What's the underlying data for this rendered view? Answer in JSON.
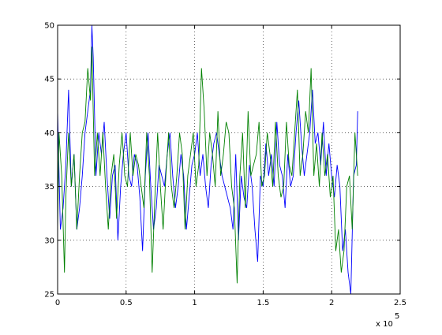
{
  "chart_data": {
    "type": "line",
    "title": "",
    "xlabel": "",
    "ylabel": "",
    "xlim": [
      0,
      2.5
    ],
    "ylim": [
      25,
      50
    ],
    "x_ticks": [
      0,
      0.5,
      1,
      1.5,
      2,
      2.5
    ],
    "x_tick_labels": [
      "0",
      "0.5",
      "1",
      "1.5",
      "2",
      "2.5"
    ],
    "y_ticks": [
      25,
      30,
      35,
      40,
      45,
      50
    ],
    "y_tick_labels": [
      "25",
      "30",
      "35",
      "40",
      "45",
      "50"
    ],
    "x_multiplier": {
      "prefix": "x 10",
      "exponent": "5"
    },
    "grid": true,
    "grid_style": "dotted",
    "legend": "none",
    "series": [
      {
        "color": "#0000ff",
        "x": [
          0.0,
          0.02,
          0.04,
          0.06,
          0.08,
          0.1,
          0.12,
          0.14,
          0.16,
          0.18,
          0.2,
          0.22,
          0.24,
          0.25,
          0.26,
          0.28,
          0.3,
          0.32,
          0.34,
          0.36,
          0.38,
          0.4,
          0.42,
          0.44,
          0.46,
          0.48,
          0.5,
          0.52,
          0.54,
          0.56,
          0.58,
          0.6,
          0.62,
          0.64,
          0.66,
          0.68,
          0.7,
          0.72,
          0.74,
          0.76,
          0.78,
          0.8,
          0.82,
          0.84,
          0.86,
          0.88,
          0.9,
          0.92,
          0.94,
          0.96,
          0.98,
          1.0,
          1.02,
          1.04,
          1.06,
          1.08,
          1.1,
          1.12,
          1.14,
          1.16,
          1.18,
          1.2,
          1.22,
          1.24,
          1.26,
          1.28,
          1.3,
          1.32,
          1.34,
          1.36,
          1.38,
          1.4,
          1.42,
          1.44,
          1.46,
          1.48,
          1.5,
          1.52,
          1.54,
          1.56,
          1.58,
          1.6,
          1.62,
          1.64,
          1.66,
          1.68,
          1.7,
          1.72,
          1.74,
          1.76,
          1.78,
          1.8,
          1.82,
          1.84,
          1.86,
          1.88,
          1.9,
          1.92,
          1.94,
          1.96,
          1.98,
          2.0,
          2.02,
          2.04,
          2.06,
          2.08,
          2.1,
          2.12,
          2.14,
          2.16,
          2.18,
          2.19
        ],
        "y": [
          42,
          31,
          33,
          37,
          44,
          35,
          38,
          31,
          33,
          36,
          40,
          42,
          44,
          50,
          47,
          36,
          40,
          38,
          41,
          36,
          32,
          36,
          37,
          30,
          35,
          38,
          40,
          36,
          35,
          38,
          37,
          34,
          29,
          36,
          40,
          35,
          31,
          33,
          37,
          36,
          35,
          38,
          40,
          36,
          33,
          35,
          38,
          36,
          31,
          34,
          37,
          38,
          40,
          36,
          38,
          35,
          33,
          37,
          39,
          40,
          38,
          36,
          35,
          34,
          33,
          31,
          38,
          30,
          36,
          34,
          33,
          37,
          35,
          31,
          28,
          36,
          35,
          39,
          36,
          38,
          35,
          41,
          37,
          36,
          33,
          38,
          35,
          36,
          40,
          43,
          39,
          36,
          38,
          40,
          44,
          39,
          40,
          37,
          41,
          36,
          39,
          36,
          34,
          37,
          35,
          29,
          31,
          27,
          25,
          36,
          37,
          42
        ]
      },
      {
        "color": "#008000",
        "x": [
          0.0,
          0.01,
          0.03,
          0.05,
          0.06,
          0.08,
          0.1,
          0.12,
          0.14,
          0.16,
          0.18,
          0.2,
          0.22,
          0.24,
          0.25,
          0.27,
          0.29,
          0.31,
          0.33,
          0.35,
          0.37,
          0.39,
          0.41,
          0.43,
          0.45,
          0.47,
          0.49,
          0.51,
          0.53,
          0.55,
          0.57,
          0.59,
          0.61,
          0.63,
          0.65,
          0.67,
          0.69,
          0.71,
          0.73,
          0.75,
          0.77,
          0.79,
          0.81,
          0.83,
          0.85,
          0.87,
          0.89,
          0.91,
          0.93,
          0.95,
          0.97,
          0.99,
          1.01,
          1.03,
          1.05,
          1.07,
          1.09,
          1.11,
          1.13,
          1.15,
          1.17,
          1.19,
          1.21,
          1.23,
          1.25,
          1.27,
          1.29,
          1.31,
          1.33,
          1.35,
          1.37,
          1.39,
          1.41,
          1.43,
          1.45,
          1.47,
          1.49,
          1.51,
          1.53,
          1.55,
          1.57,
          1.59,
          1.61,
          1.63,
          1.65,
          1.67,
          1.69,
          1.71,
          1.73,
          1.75,
          1.77,
          1.79,
          1.81,
          1.83,
          1.85,
          1.87,
          1.89,
          1.91,
          1.93,
          1.95,
          1.97,
          1.99,
          2.01,
          2.03,
          2.05,
          2.07,
          2.09,
          2.11,
          2.13,
          2.15,
          2.17,
          2.19
        ],
        "y": [
          31,
          40,
          36,
          27,
          34,
          40,
          35,
          38,
          31,
          36,
          40,
          41,
          46,
          43,
          48,
          36,
          40,
          36,
          40,
          35,
          31,
          36,
          38,
          32,
          37,
          40,
          36,
          35,
          40,
          36,
          38,
          37,
          35,
          33,
          40,
          36,
          27,
          34,
          40,
          35,
          31,
          36,
          40,
          35,
          33,
          36,
          40,
          38,
          31,
          36,
          38,
          40,
          35,
          37,
          46,
          42,
          36,
          40,
          38,
          35,
          42,
          36,
          38,
          41,
          40,
          35,
          33,
          26,
          36,
          40,
          33,
          42,
          36,
          37,
          38,
          41,
          35,
          36,
          40,
          38,
          35,
          41,
          36,
          34,
          35,
          41,
          37,
          36,
          40,
          44,
          36,
          38,
          42,
          40,
          46,
          36,
          39,
          35,
          40,
          36,
          38,
          34,
          36,
          29,
          31,
          27,
          29,
          35,
          36,
          31,
          40,
          36
        ]
      }
    ]
  }
}
